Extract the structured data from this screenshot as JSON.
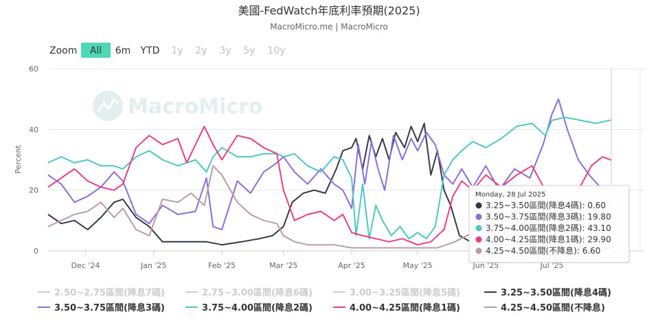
{
  "title": "美國-FedWatch年底利率預期(2025)",
  "subtitle": "MacroMicro.me | MacroMicro",
  "watermark": "MacroMicro",
  "zoom": {
    "label": "Zoom",
    "buttons": [
      {
        "label": "All",
        "active": true,
        "enabled": true
      },
      {
        "label": "6m",
        "active": false,
        "enabled": true
      },
      {
        "label": "YTD",
        "active": false,
        "enabled": true
      },
      {
        "label": "1y",
        "active": false,
        "enabled": false
      },
      {
        "label": "2y",
        "active": false,
        "enabled": false
      },
      {
        "label": "3y",
        "active": false,
        "enabled": false
      },
      {
        "label": "5y",
        "active": false,
        "enabled": false
      },
      {
        "label": "10y",
        "active": false,
        "enabled": false
      }
    ]
  },
  "tooltip": {
    "date": "Monday, 28 Jul 2025",
    "rows": [
      {
        "label": "3.25~3.50區間(降息4碼)",
        "value": "0.60",
        "color": "#333844"
      },
      {
        "label": "3.50~3.75區間(降息3碼)",
        "value": "19.80",
        "color": "#8b6cd9"
      },
      {
        "label": "3.75~4.00區間(降息2碼)",
        "value": "43.10",
        "color": "#4dc7c6"
      },
      {
        "label": "4.00~4.25區間(降息1碼)",
        "value": "29.90",
        "color": "#ea3d82"
      },
      {
        "label": "4.25~4.50區間(不降息)",
        "value": "6.60",
        "color": "#b99aad"
      }
    ]
  },
  "chart_data": {
    "type": "line",
    "ylabel": "Percent",
    "ylim": [
      0,
      60
    ],
    "yticks": [
      0,
      20,
      40,
      60
    ],
    "xlim": [
      "2024-11-14",
      "2025-08-12"
    ],
    "xticks": [
      {
        "date": "2024-12-01",
        "label": "Dec '24"
      },
      {
        "date": "2025-01-01",
        "label": "Jan '25"
      },
      {
        "date": "2025-02-01",
        "label": "Feb '25"
      },
      {
        "date": "2025-03-01",
        "label": "Mar '25"
      },
      {
        "date": "2025-04-01",
        "label": "Apr '25"
      },
      {
        "date": "2025-05-01",
        "label": "May '25"
      },
      {
        "date": "2025-06-01",
        "label": "Jun '25"
      },
      {
        "date": "2025-07-01",
        "label": "Jul '25"
      }
    ],
    "grid": true,
    "legend": "bottom",
    "series": [
      {
        "name": "2.50~2.75區間(降息7碼)",
        "color": "#cccccc",
        "visible": false,
        "points": []
      },
      {
        "name": "2.75~3.00區間(降息6碼)",
        "color": "#cccccc",
        "visible": false,
        "points": []
      },
      {
        "name": "3.00~3.25區間(降息5碼)",
        "color": "#cccccc",
        "visible": false,
        "points": []
      },
      {
        "name": "3.25~3.50區間(降息4碼)",
        "color": "#333844",
        "visible": true,
        "points": [
          [
            "2024-11-14",
            12
          ],
          [
            "2024-11-20",
            9
          ],
          [
            "2024-11-26",
            10
          ],
          [
            "2024-12-02",
            7
          ],
          [
            "2024-12-08",
            11
          ],
          [
            "2024-12-14",
            16
          ],
          [
            "2024-12-18",
            17
          ],
          [
            "2024-12-24",
            11
          ],
          [
            "2024-12-30",
            8
          ],
          [
            "2025-01-05",
            3
          ],
          [
            "2025-01-15",
            3
          ],
          [
            "2025-01-25",
            3
          ],
          [
            "2025-02-01",
            2
          ],
          [
            "2025-02-10",
            3
          ],
          [
            "2025-02-18",
            4
          ],
          [
            "2025-02-24",
            5
          ],
          [
            "2025-03-01",
            8
          ],
          [
            "2025-03-05",
            16
          ],
          [
            "2025-03-10",
            19
          ],
          [
            "2025-03-15",
            20
          ],
          [
            "2025-03-20",
            19
          ],
          [
            "2025-03-25",
            27
          ],
          [
            "2025-03-28",
            33
          ],
          [
            "2025-04-01",
            34
          ],
          [
            "2025-04-03",
            37
          ],
          [
            "2025-04-06",
            27
          ],
          [
            "2025-04-09",
            38
          ],
          [
            "2025-04-12",
            31
          ],
          [
            "2025-04-15",
            37
          ],
          [
            "2025-04-18",
            30
          ],
          [
            "2025-04-21",
            39
          ],
          [
            "2025-04-25",
            34
          ],
          [
            "2025-04-28",
            41
          ],
          [
            "2025-05-01",
            36
          ],
          [
            "2025-05-04",
            42
          ],
          [
            "2025-05-07",
            25
          ],
          [
            "2025-05-10",
            33
          ],
          [
            "2025-05-13",
            20
          ],
          [
            "2025-05-16",
            15
          ],
          [
            "2025-05-20",
            5
          ],
          [
            "2025-05-25",
            3
          ],
          [
            "2025-06-01",
            3
          ],
          [
            "2025-06-10",
            2
          ],
          [
            "2025-06-20",
            2
          ],
          [
            "2025-07-01",
            2
          ],
          [
            "2025-07-10",
            1
          ],
          [
            "2025-07-20",
            1
          ],
          [
            "2025-07-28",
            0.6
          ]
        ]
      },
      {
        "name": "3.50~3.75區間(降息3碼)",
        "color": "#8b6cd9",
        "visible": true,
        "points": [
          [
            "2024-11-14",
            25
          ],
          [
            "2024-11-20",
            22
          ],
          [
            "2024-11-26",
            16
          ],
          [
            "2024-12-02",
            18
          ],
          [
            "2024-12-08",
            21
          ],
          [
            "2024-12-14",
            26
          ],
          [
            "2024-12-18",
            23
          ],
          [
            "2024-12-24",
            12
          ],
          [
            "2024-12-30",
            9
          ],
          [
            "2025-01-05",
            15
          ],
          [
            "2025-01-12",
            12
          ],
          [
            "2025-01-20",
            13
          ],
          [
            "2025-01-25",
            24
          ],
          [
            "2025-01-28",
            8
          ],
          [
            "2025-02-01",
            7
          ],
          [
            "2025-02-08",
            23
          ],
          [
            "2025-02-14",
            19
          ],
          [
            "2025-02-20",
            26
          ],
          [
            "2025-02-26",
            29
          ],
          [
            "2025-03-01",
            31
          ],
          [
            "2025-03-06",
            26
          ],
          [
            "2025-03-12",
            22
          ],
          [
            "2025-03-18",
            27
          ],
          [
            "2025-03-24",
            22
          ],
          [
            "2025-03-28",
            20
          ],
          [
            "2025-04-01",
            14
          ],
          [
            "2025-04-04",
            35
          ],
          [
            "2025-04-07",
            22
          ],
          [
            "2025-04-10",
            36
          ],
          [
            "2025-04-13",
            27
          ],
          [
            "2025-04-16",
            20
          ],
          [
            "2025-04-20",
            38
          ],
          [
            "2025-04-24",
            30
          ],
          [
            "2025-04-28",
            37
          ],
          [
            "2025-05-01",
            33
          ],
          [
            "2025-05-05",
            39
          ],
          [
            "2025-05-09",
            35
          ],
          [
            "2025-05-13",
            25
          ],
          [
            "2025-05-17",
            22
          ],
          [
            "2025-05-21",
            27
          ],
          [
            "2025-05-26",
            21
          ],
          [
            "2025-06-01",
            28
          ],
          [
            "2025-06-07",
            20
          ],
          [
            "2025-06-14",
            27
          ],
          [
            "2025-06-21",
            24
          ],
          [
            "2025-06-27",
            35
          ],
          [
            "2025-07-01",
            45
          ],
          [
            "2025-07-04",
            50
          ],
          [
            "2025-07-08",
            40
          ],
          [
            "2025-07-13",
            30
          ],
          [
            "2025-07-18",
            25
          ],
          [
            "2025-07-23",
            21
          ],
          [
            "2025-07-28",
            19.8
          ]
        ]
      },
      {
        "name": "3.75~4.00區間(降息2碼)",
        "color": "#4dc7c6",
        "visible": true,
        "points": [
          [
            "2024-11-14",
            29
          ],
          [
            "2024-11-20",
            31
          ],
          [
            "2024-11-26",
            29
          ],
          [
            "2024-12-02",
            30
          ],
          [
            "2024-12-08",
            28
          ],
          [
            "2024-12-14",
            28
          ],
          [
            "2024-12-18",
            27
          ],
          [
            "2024-12-24",
            31
          ],
          [
            "2024-12-30",
            33
          ],
          [
            "2025-01-05",
            30
          ],
          [
            "2025-01-12",
            28
          ],
          [
            "2025-01-20",
            30
          ],
          [
            "2025-01-25",
            26
          ],
          [
            "2025-01-28",
            31
          ],
          [
            "2025-02-01",
            34
          ],
          [
            "2025-02-08",
            31
          ],
          [
            "2025-02-14",
            31
          ],
          [
            "2025-02-20",
            32
          ],
          [
            "2025-02-26",
            32
          ],
          [
            "2025-03-01",
            31
          ],
          [
            "2025-03-06",
            32
          ],
          [
            "2025-03-12",
            28
          ],
          [
            "2025-03-18",
            26
          ],
          [
            "2025-03-24",
            31
          ],
          [
            "2025-03-28",
            30
          ],
          [
            "2025-04-01",
            24
          ],
          [
            "2025-04-03",
            5
          ],
          [
            "2025-04-06",
            22
          ],
          [
            "2025-04-09",
            4
          ],
          [
            "2025-04-12",
            15
          ],
          [
            "2025-04-15",
            10
          ],
          [
            "2025-04-19",
            5
          ],
          [
            "2025-04-23",
            8
          ],
          [
            "2025-04-27",
            4
          ],
          [
            "2025-05-01",
            6
          ],
          [
            "2025-05-05",
            4
          ],
          [
            "2025-05-09",
            8
          ],
          [
            "2025-05-13",
            25
          ],
          [
            "2025-05-17",
            30
          ],
          [
            "2025-05-21",
            33
          ],
          [
            "2025-05-26",
            36
          ],
          [
            "2025-06-01",
            34
          ],
          [
            "2025-06-08",
            37
          ],
          [
            "2025-06-15",
            41
          ],
          [
            "2025-06-22",
            42
          ],
          [
            "2025-06-28",
            38
          ],
          [
            "2025-07-01",
            43
          ],
          [
            "2025-07-07",
            44
          ],
          [
            "2025-07-14",
            43
          ],
          [
            "2025-07-21",
            42
          ],
          [
            "2025-07-28",
            43.1
          ]
        ]
      },
      {
        "name": "4.00~4.25區間(降息1碼)",
        "color": "#ea3d82",
        "visible": true,
        "points": [
          [
            "2024-11-14",
            21
          ],
          [
            "2024-11-20",
            24
          ],
          [
            "2024-11-26",
            27
          ],
          [
            "2024-12-02",
            23
          ],
          [
            "2024-12-08",
            21
          ],
          [
            "2024-12-14",
            20
          ],
          [
            "2024-12-18",
            22
          ],
          [
            "2024-12-24",
            34
          ],
          [
            "2024-12-30",
            38
          ],
          [
            "2025-01-05",
            35
          ],
          [
            "2025-01-12",
            37
          ],
          [
            "2025-01-16",
            29
          ],
          [
            "2025-01-20",
            35
          ],
          [
            "2025-01-24",
            41
          ],
          [
            "2025-01-28",
            35
          ],
          [
            "2025-02-01",
            30
          ],
          [
            "2025-02-08",
            38
          ],
          [
            "2025-02-14",
            37
          ],
          [
            "2025-02-20",
            34
          ],
          [
            "2025-02-26",
            32
          ],
          [
            "2025-03-01",
            20
          ],
          [
            "2025-03-06",
            10
          ],
          [
            "2025-03-12",
            12
          ],
          [
            "2025-03-18",
            13
          ],
          [
            "2025-03-24",
            10
          ],
          [
            "2025-03-28",
            12
          ],
          [
            "2025-04-01",
            6
          ],
          [
            "2025-04-06",
            5
          ],
          [
            "2025-04-12",
            4
          ],
          [
            "2025-04-18",
            3
          ],
          [
            "2025-04-24",
            4
          ],
          [
            "2025-05-01",
            2
          ],
          [
            "2025-05-07",
            3
          ],
          [
            "2025-05-13",
            7
          ],
          [
            "2025-05-17",
            18
          ],
          [
            "2025-05-21",
            23
          ],
          [
            "2025-05-26",
            20
          ],
          [
            "2025-06-01",
            25
          ],
          [
            "2025-06-08",
            21
          ],
          [
            "2025-06-15",
            25
          ],
          [
            "2025-06-22",
            28
          ],
          [
            "2025-06-28",
            20
          ],
          [
            "2025-07-01",
            12
          ],
          [
            "2025-07-07",
            8
          ],
          [
            "2025-07-13",
            20
          ],
          [
            "2025-07-19",
            28
          ],
          [
            "2025-07-24",
            31
          ],
          [
            "2025-07-28",
            29.9
          ]
        ]
      },
      {
        "name": "4.25~4.50區間(不降息)",
        "color": "#b99aad",
        "visible": true,
        "points": [
          [
            "2024-11-14",
            8
          ],
          [
            "2024-11-20",
            10
          ],
          [
            "2024-11-26",
            12
          ],
          [
            "2024-12-02",
            13
          ],
          [
            "2024-12-08",
            16
          ],
          [
            "2024-12-14",
            11
          ],
          [
            "2024-12-18",
            14
          ],
          [
            "2024-12-24",
            7
          ],
          [
            "2024-12-30",
            5
          ],
          [
            "2025-01-05",
            17
          ],
          [
            "2025-01-12",
            16
          ],
          [
            "2025-01-18",
            19
          ],
          [
            "2025-01-24",
            15
          ],
          [
            "2025-01-28",
            28
          ],
          [
            "2025-02-01",
            25
          ],
          [
            "2025-02-08",
            16
          ],
          [
            "2025-02-14",
            12
          ],
          [
            "2025-02-20",
            10
          ],
          [
            "2025-02-26",
            9
          ],
          [
            "2025-03-01",
            5
          ],
          [
            "2025-03-06",
            3
          ],
          [
            "2025-03-12",
            2
          ],
          [
            "2025-03-18",
            2
          ],
          [
            "2025-03-24",
            2
          ],
          [
            "2025-04-01",
            1
          ],
          [
            "2025-04-10",
            1
          ],
          [
            "2025-04-20",
            1
          ],
          [
            "2025-05-01",
            1
          ],
          [
            "2025-05-10",
            1
          ],
          [
            "2025-05-18",
            3
          ],
          [
            "2025-05-26",
            6
          ],
          [
            "2025-06-01",
            7
          ],
          [
            "2025-06-08",
            5
          ],
          [
            "2025-06-15",
            9
          ],
          [
            "2025-06-22",
            10
          ],
          [
            "2025-07-01",
            8
          ],
          [
            "2025-07-08",
            6
          ],
          [
            "2025-07-15",
            8
          ],
          [
            "2025-07-22",
            7
          ],
          [
            "2025-07-28",
            6.6
          ]
        ]
      }
    ]
  }
}
